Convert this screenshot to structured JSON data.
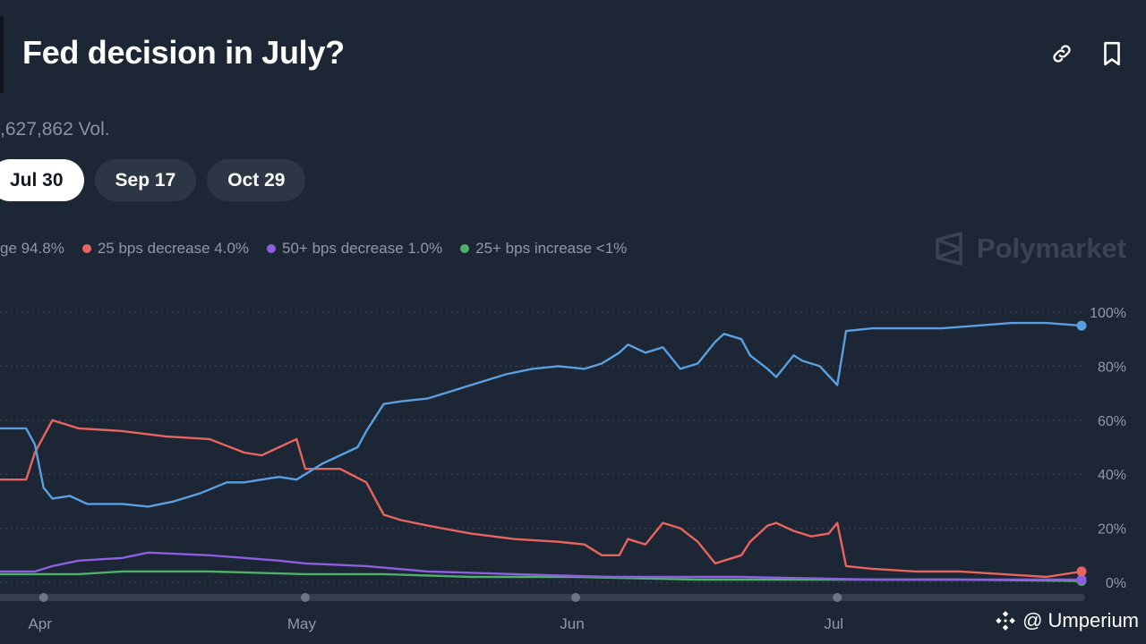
{
  "header": {
    "title": "Fed decision in July?",
    "volume": ",627,862 Vol.",
    "link_icon": "link-icon",
    "bookmark_icon": "bookmark-icon"
  },
  "tabs": [
    {
      "label": "Jul 30",
      "active": true
    },
    {
      "label": "Sep 17",
      "active": false
    },
    {
      "label": "Oct 29",
      "active": false
    }
  ],
  "watermark": {
    "text": "Polymarket",
    "icon": "polymarket-logo-icon"
  },
  "credit": {
    "text": "@ Umperium",
    "icon": "binance-logo-icon"
  },
  "colors": {
    "background": "#1d2634",
    "no_change": "#5a9fe0",
    "decrease_25": "#e8645e",
    "decrease_50": "#8c5fe0",
    "increase_25": "#4fb06a",
    "grid": "#3c4656",
    "axis_text": "#8f98a8"
  },
  "chart_data": {
    "type": "line",
    "xlim": [
      "2025-03-27",
      "2025-07-29"
    ],
    "ylim": [
      0,
      100
    ],
    "y_ticks": [
      "0%",
      "20%",
      "40%",
      "60%",
      "80%",
      "100%"
    ],
    "x_ticks": [
      {
        "label": "Apr",
        "date": "2025-04-01"
      },
      {
        "label": "May",
        "date": "2025-05-01"
      },
      {
        "label": "Jun",
        "date": "2025-06-01"
      },
      {
        "label": "Jul",
        "date": "2025-07-01"
      }
    ],
    "grid": true,
    "legend": [
      {
        "label": "ge 94.8%",
        "series": 0
      },
      {
        "label": "25 bps decrease 4.0%",
        "series": 1
      },
      {
        "label": "50+ bps decrease 1.0%",
        "series": 2
      },
      {
        "label": "25+ bps increase <1%",
        "series": 3
      }
    ],
    "series": [
      {
        "x": [
          "2025-03-27",
          "2025-03-30",
          "2025-03-31",
          "2025-04-01",
          "2025-04-02",
          "2025-04-04",
          "2025-04-06",
          "2025-04-08",
          "2025-04-10",
          "2025-04-13",
          "2025-04-16",
          "2025-04-19",
          "2025-04-22",
          "2025-04-24",
          "2025-04-26",
          "2025-04-28",
          "2025-04-30",
          "2025-05-01",
          "2025-05-03",
          "2025-05-05",
          "2025-05-07",
          "2025-05-08",
          "2025-05-10",
          "2025-05-12",
          "2025-05-15",
          "2025-05-18",
          "2025-05-21",
          "2025-05-24",
          "2025-05-27",
          "2025-05-30",
          "2025-06-02",
          "2025-06-04",
          "2025-06-06",
          "2025-06-07",
          "2025-06-09",
          "2025-06-11",
          "2025-06-13",
          "2025-06-15",
          "2025-06-17",
          "2025-06-18",
          "2025-06-20",
          "2025-06-21",
          "2025-06-23",
          "2025-06-24",
          "2025-06-26",
          "2025-06-27",
          "2025-06-29",
          "2025-07-01",
          "2025-07-02",
          "2025-07-05",
          "2025-07-09",
          "2025-07-13",
          "2025-07-17",
          "2025-07-21",
          "2025-07-25",
          "2025-07-29"
        ],
        "y": [
          57,
          57,
          51,
          35,
          31,
          32,
          29,
          29,
          29,
          28,
          30,
          33,
          37,
          37,
          38,
          39,
          38,
          40,
          44,
          47,
          50,
          56,
          66,
          67,
          68,
          71,
          74,
          77,
          79,
          80,
          79,
          81,
          85,
          88,
          85,
          87,
          79,
          81,
          89,
          92,
          90,
          84,
          79,
          76,
          84,
          82,
          80,
          73,
          93,
          94,
          94,
          94,
          95,
          96,
          96,
          95
        ]
      },
      {
        "x": [
          "2025-03-27",
          "2025-03-30",
          "2025-03-31",
          "2025-04-01",
          "2025-04-02",
          "2025-04-05",
          "2025-04-10",
          "2025-04-15",
          "2025-04-20",
          "2025-04-24",
          "2025-04-26",
          "2025-04-28",
          "2025-04-30",
          "2025-05-01",
          "2025-05-05",
          "2025-05-08",
          "2025-05-10",
          "2025-05-12",
          "2025-05-15",
          "2025-05-20",
          "2025-05-25",
          "2025-05-30",
          "2025-06-02",
          "2025-06-04",
          "2025-06-06",
          "2025-06-07",
          "2025-06-09",
          "2025-06-11",
          "2025-06-13",
          "2025-06-15",
          "2025-06-17",
          "2025-06-18",
          "2025-06-20",
          "2025-06-21",
          "2025-06-23",
          "2025-06-24",
          "2025-06-26",
          "2025-06-28",
          "2025-06-30",
          "2025-07-01",
          "2025-07-02",
          "2025-07-05",
          "2025-07-10",
          "2025-07-15",
          "2025-07-20",
          "2025-07-25",
          "2025-07-29"
        ],
        "y": [
          38,
          38,
          48,
          54,
          60,
          57,
          56,
          54,
          53,
          48,
          47,
          50,
          53,
          42,
          42,
          37,
          25,
          23,
          21,
          18,
          16,
          15,
          14,
          10,
          10,
          16,
          14,
          22,
          20,
          15,
          7,
          8,
          10,
          15,
          21,
          22,
          19,
          17,
          18,
          22,
          6,
          5,
          4,
          4,
          3,
          2,
          4
        ]
      },
      {
        "x": [
          "2025-03-27",
          "2025-03-31",
          "2025-04-02",
          "2025-04-05",
          "2025-04-10",
          "2025-04-13",
          "2025-04-20",
          "2025-04-28",
          "2025-05-01",
          "2025-05-08",
          "2025-05-15",
          "2025-05-25",
          "2025-06-05",
          "2025-06-20",
          "2025-07-05",
          "2025-07-20",
          "2025-07-29"
        ],
        "y": [
          4,
          4,
          6,
          8,
          9,
          11,
          10,
          8,
          7,
          6,
          4,
          3,
          2,
          2,
          1,
          1,
          1
        ]
      },
      {
        "x": [
          "2025-03-27",
          "2025-04-05",
          "2025-04-10",
          "2025-04-20",
          "2025-05-01",
          "2025-05-10",
          "2025-05-20",
          "2025-06-01",
          "2025-06-15",
          "2025-07-01",
          "2025-07-15",
          "2025-07-29"
        ],
        "y": [
          3,
          3,
          4,
          4,
          3,
          3,
          2,
          2,
          1,
          1,
          1,
          0.5
        ]
      }
    ]
  }
}
